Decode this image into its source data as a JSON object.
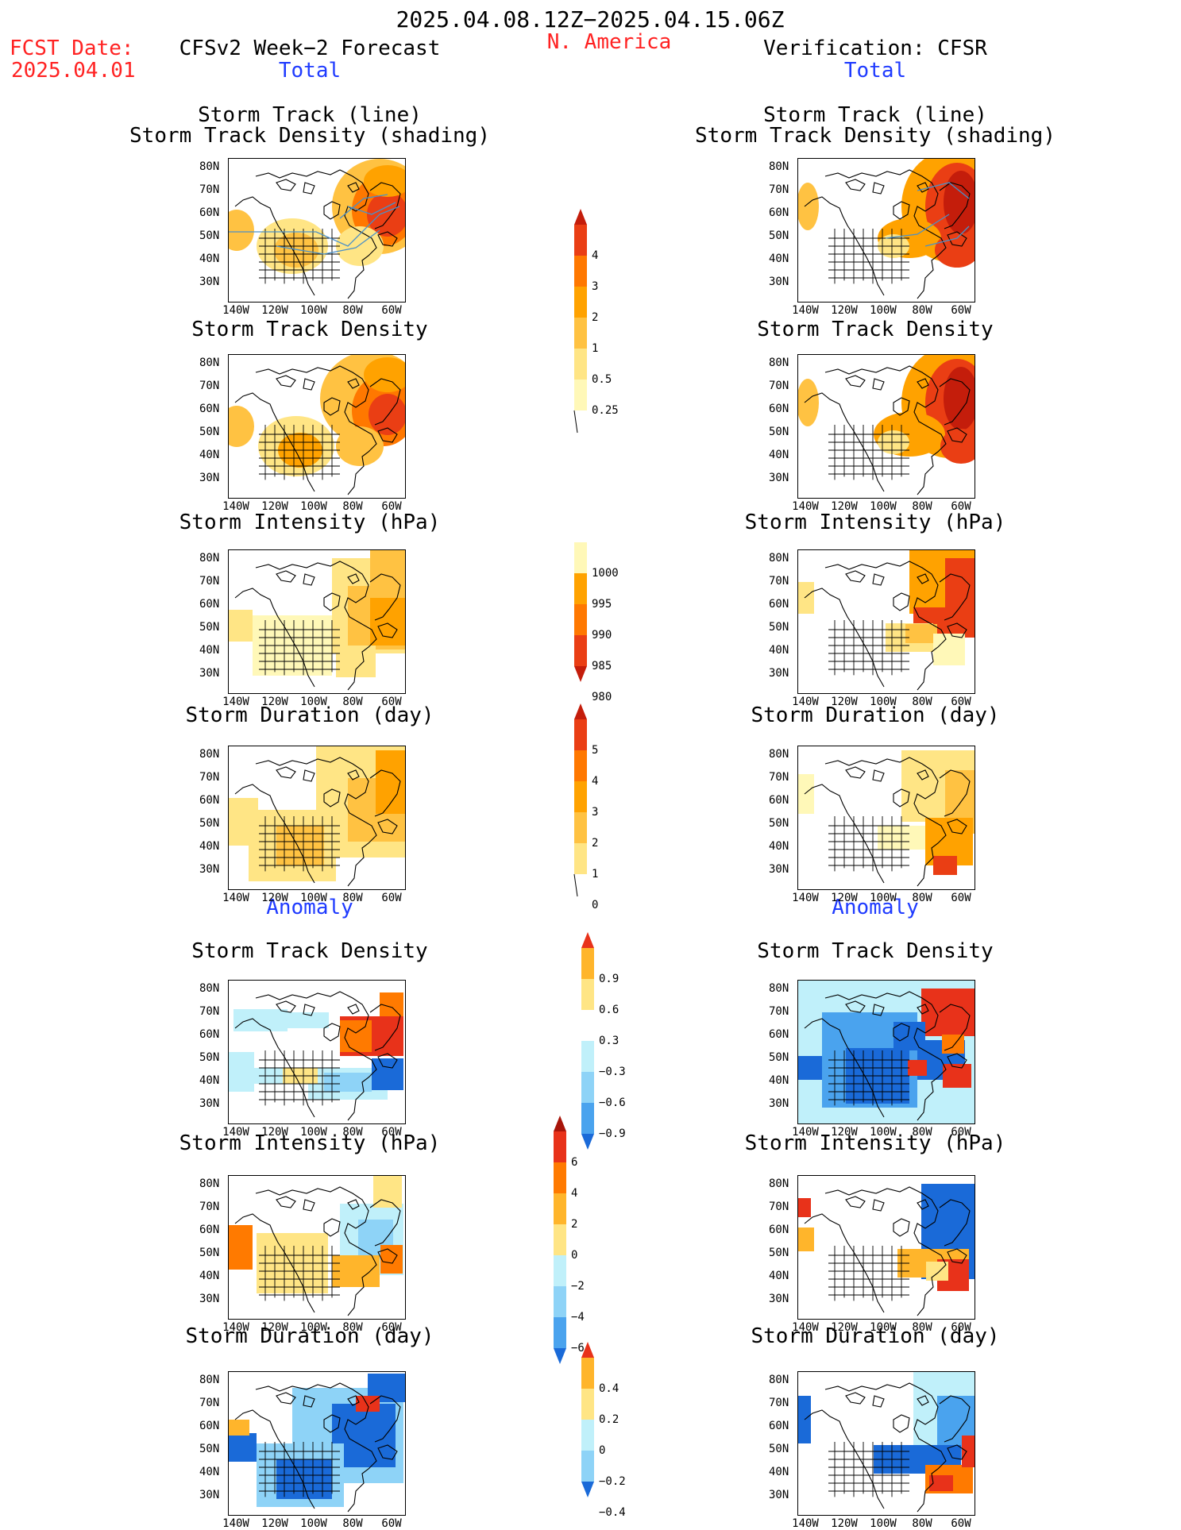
{
  "header": {
    "period": "2025.04.08.12Z−2025.04.15.06Z",
    "fcst_label": "FCST Date:",
    "fcst_date": "2025.04.01",
    "region": "N. America",
    "left_title": "CFSv2 Week−2 Forecast",
    "right_title": "Verification: CFSR",
    "total_label": "Total",
    "anomaly_label": "Anomaly"
  },
  "panels": {
    "track_line_title": "Storm Track (line)",
    "track_shading_title": "Storm Track Density (shading)",
    "density_title": "Storm Track Density",
    "intensity_title": "Storm Intensity (hPa)",
    "duration_title": "Storm Duration (day)"
  },
  "axes": {
    "lat_labels": [
      "80N",
      "70N",
      "60N",
      "50N",
      "40N",
      "30N"
    ],
    "lon_labels": [
      "140W",
      "120W",
      "100W",
      "80W",
      "60W"
    ]
  },
  "colorbars": {
    "track_density": [
      "4",
      "3",
      "2",
      "1",
      "0.5",
      "0.25"
    ],
    "intensity": [
      "1000",
      "995",
      "990",
      "985",
      "980"
    ],
    "duration": [
      "5",
      "4",
      "3",
      "2",
      "1",
      "0"
    ],
    "density_anom": [
      "0.9",
      "0.6",
      "0.3",
      "−0.3",
      "−0.6",
      "−0.9"
    ],
    "intensity_anom": [
      "6",
      "4",
      "2",
      "0",
      "−2",
      "−4",
      "−6"
    ],
    "duration_anom": [
      "0.4",
      "0.2",
      "0",
      "−0.2",
      "−0.4"
    ]
  },
  "colors": {
    "title_red": "#ff2222",
    "label_blue": "#1f3bff",
    "track_line": "#4a90c8"
  }
}
